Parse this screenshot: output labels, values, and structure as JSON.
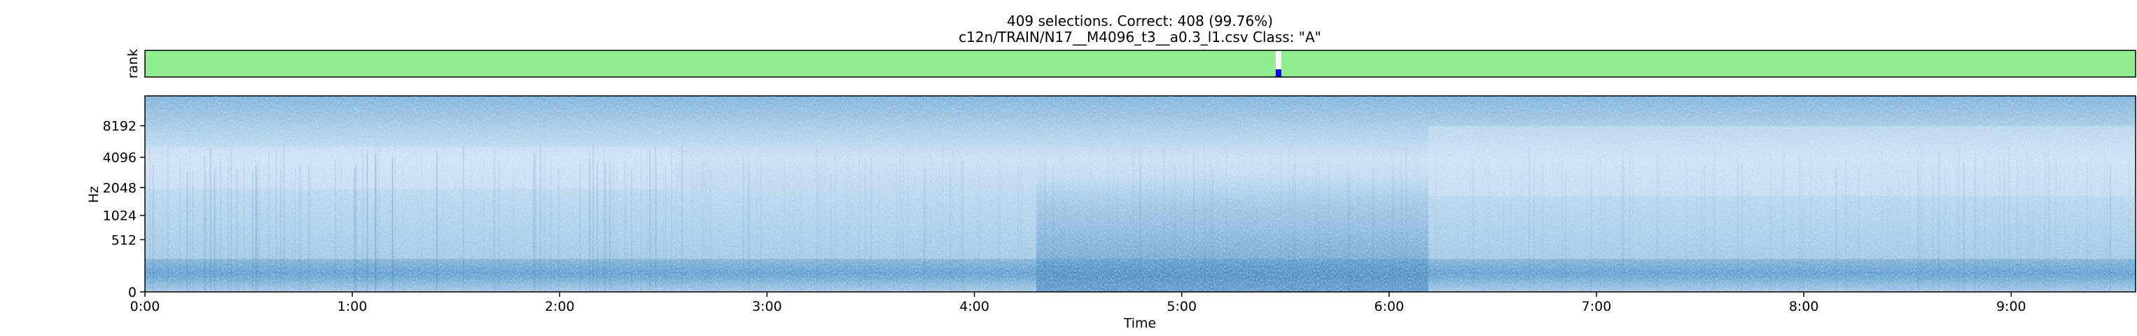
{
  "chart_data": [
    {
      "type": "heatmap",
      "panel": "rank",
      "title_line1": "409 selections.  Correct: 408 (99.76%)",
      "title_line2": "c12n/TRAIN/N17__M4096_t3__a0.3_l1.csv  Class: \"A\"",
      "ylabel": "rank",
      "xlabel": "",
      "background_color": "#90ee90",
      "x_range": [
        "0:00",
        "9:36"
      ],
      "selections_total": 409,
      "selections_correct": 408,
      "marker": {
        "time": "5:28",
        "top_color": "#ffffff",
        "bottom_color": "#0000ff"
      }
    },
    {
      "type": "heatmap",
      "panel": "spectrogram",
      "title": "",
      "xlabel": "Time",
      "ylabel": "Hz",
      "x_ticks": [
        "0:00",
        "1:00",
        "2:00",
        "3:00",
        "4:00",
        "5:00",
        "6:00",
        "7:00",
        "8:00",
        "9:00"
      ],
      "x_tick_minutes": [
        0,
        1,
        2,
        3,
        4,
        5,
        6,
        7,
        8,
        9
      ],
      "x_max_minutes": 9.6,
      "y_ticks": [
        "0",
        "512",
        "1024",
        "2048",
        "4096",
        "8192"
      ],
      "y_tick_values": [
        0,
        512,
        1024,
        2048,
        4096,
        8192
      ],
      "y_scale": "log-like",
      "colormap": "Blues"
    }
  ]
}
